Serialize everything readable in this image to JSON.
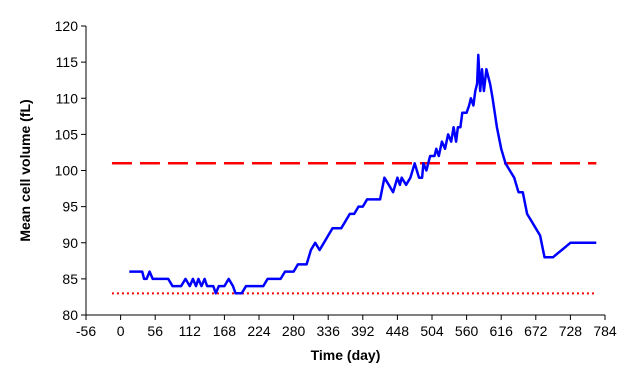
{
  "chart_data": {
    "type": "line",
    "title": "",
    "xlabel": "Time (day)",
    "ylabel": "Mean cell volume (fL)",
    "xlim": [
      -56,
      784
    ],
    "ylim": [
      80,
      120
    ],
    "xticks": [
      -56,
      0,
      56,
      112,
      168,
      224,
      280,
      336,
      392,
      448,
      504,
      560,
      616,
      672,
      728,
      784
    ],
    "yticks": [
      80,
      85,
      90,
      95,
      100,
      105,
      110,
      115,
      120
    ],
    "grid": false,
    "legend": "none",
    "series": [
      {
        "type": "line",
        "color": "#0000ff",
        "x": [
          14,
          21,
          28,
          35,
          38,
          42,
          47,
          52,
          56,
          63,
          70,
          77,
          84,
          91,
          98,
          105,
          112,
          117,
          122,
          126,
          131,
          136,
          140,
          145,
          150,
          154,
          159,
          164,
          168,
          175,
          182,
          186,
          192,
          196,
          203,
          210,
          217,
          224,
          231,
          238,
          245,
          252,
          259,
          266,
          273,
          280,
          287,
          294,
          301,
          308,
          315,
          322,
          329,
          336,
          343,
          350,
          357,
          364,
          371,
          378,
          385,
          392,
          399,
          406,
          413,
          420,
          427,
          434,
          441,
          448,
          452,
          455,
          462,
          469,
          476,
          483,
          488,
          490,
          495,
          501,
          504,
          508,
          511,
          515,
          520,
          525,
          530,
          535,
          539,
          543,
          546,
          550,
          553,
          557,
          560,
          564,
          567,
          571,
          574,
          577,
          579,
          582,
          585,
          588,
          592,
          595,
          598,
          602,
          609,
          616,
          623,
          630,
          637,
          644,
          651,
          658,
          665,
          672,
          679,
          686,
          693,
          700,
          707,
          714,
          721,
          728,
          735,
          742,
          749,
          756,
          763,
          770
        ],
        "y": [
          86,
          86,
          86,
          86,
          85,
          85,
          86,
          85,
          85,
          85,
          85,
          85,
          84,
          84,
          84,
          85,
          84,
          85,
          84,
          85,
          84,
          85,
          84,
          84,
          84,
          83,
          84,
          84,
          84,
          85,
          84,
          83,
          83,
          83,
          84,
          84,
          84,
          84,
          84,
          85,
          85,
          85,
          85,
          86,
          86,
          86,
          87,
          87,
          87,
          89,
          90,
          89,
          90,
          91,
          92,
          92,
          92,
          93,
          94,
          94,
          95,
          95,
          96,
          96,
          96,
          96,
          99,
          98,
          97,
          99,
          98,
          99,
          98,
          99,
          101,
          99,
          99,
          101,
          100,
          102,
          102,
          102,
          103,
          102,
          104,
          103,
          105,
          104,
          106,
          104,
          106,
          106,
          108,
          108,
          108,
          109,
          110,
          109,
          111,
          112,
          116,
          111,
          114,
          111,
          114,
          113,
          112,
          110,
          106,
          103,
          101,
          100,
          99,
          97,
          97,
          94,
          93,
          92,
          91,
          88,
          88,
          88,
          88.5,
          89,
          89.5,
          90,
          90,
          90,
          90,
          90,
          90,
          90
        ]
      },
      {
        "type": "reference",
        "style": "dashed",
        "color": "#ff0000",
        "y": 101,
        "x": [
          -14,
          770
        ]
      },
      {
        "type": "reference",
        "style": "dotted",
        "color": "#ff0000",
        "y": 83,
        "x": [
          -14,
          770
        ]
      }
    ]
  }
}
